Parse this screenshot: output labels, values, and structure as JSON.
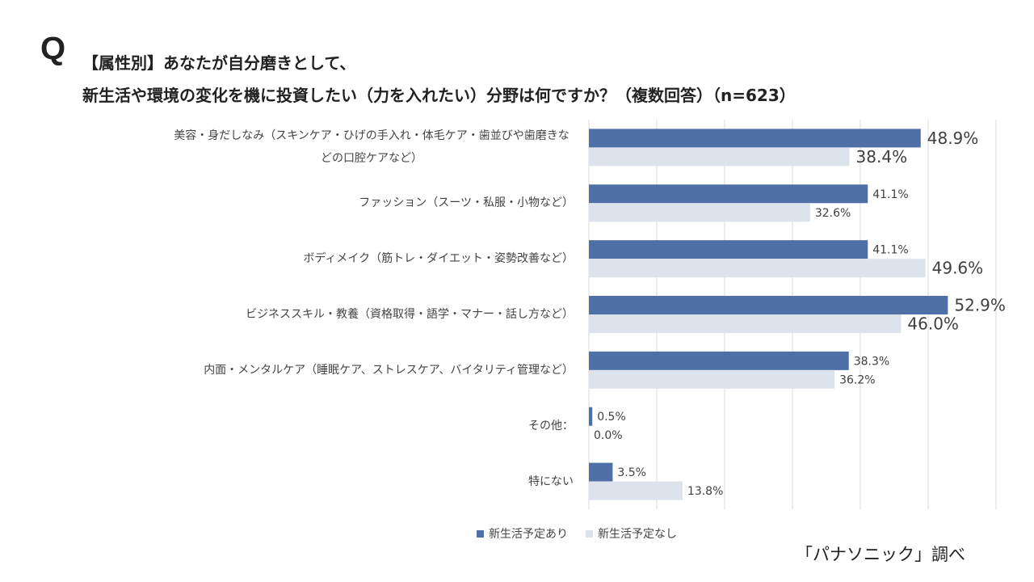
{
  "header": {
    "q_mark": "Q",
    "title_line1": "【属性別】あなたが自分磨きとして、",
    "title_line2": "新生活や環境の変化を機に投資したい（力を入れたい）分野は何ですか？（複数回答）（n=623）"
  },
  "source": "「パナソニック」調べ",
  "chart_data": {
    "type": "bar",
    "orientation": "horizontal",
    "categories": [
      "美容・身だしなみ（スキンケア・ひげの手入れ・体毛ケア・歯並びや歯磨きなどの口腔ケアなど）",
      "ファッション（スーツ・私服・小物など）",
      "ボディメイク（筋トレ・ダイエット・姿勢改善など）",
      "ビジネススキル・教養（資格取得・語学・マナー・話し方など）",
      "内面・メンタルケア（睡眠ケア、ストレスケア、バイタリティ管理など）",
      "その他：",
      "特にない"
    ],
    "series": [
      {
        "name": "新生活予定あり",
        "color": "#4f6fa7",
        "values": [
          48.9,
          41.1,
          41.1,
          52.9,
          38.3,
          0.5,
          3.5
        ],
        "labels": [
          "48.9%",
          "41.1%",
          "41.1%",
          "52.9%",
          "38.3%",
          "0.5%",
          "3.5%"
        ],
        "emphasized": [
          true,
          false,
          false,
          true,
          false,
          false,
          false
        ]
      },
      {
        "name": "新生活予定なし",
        "color": "#dde3ed",
        "values": [
          38.4,
          32.6,
          49.6,
          46.0,
          36.2,
          0.0,
          13.8
        ],
        "labels": [
          "38.4%",
          "32.6%",
          "49.6%",
          "46.0%",
          "36.2%",
          "0.0%",
          "13.8%"
        ],
        "emphasized": [
          true,
          false,
          true,
          true,
          false,
          false,
          false
        ]
      }
    ],
    "xlim": [
      0,
      60
    ],
    "grid": true,
    "legend": "bottom"
  }
}
